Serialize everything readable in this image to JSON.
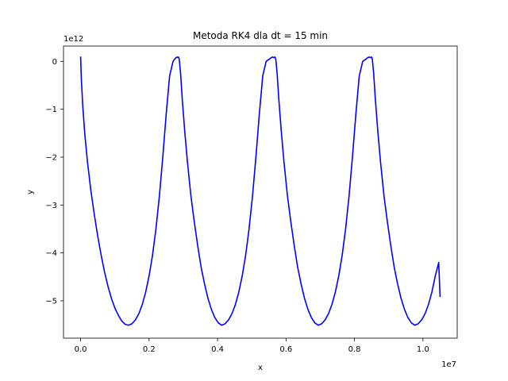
{
  "chart_data": {
    "type": "line",
    "title": "Metoda RK4 dla dt = 15 min",
    "xlabel": "x",
    "ylabel": "y",
    "x_offset_label": "1e7",
    "y_offset_label": "1e12",
    "xlim": [
      -0.05,
      1.1
    ],
    "ylim": [
      -5.78,
      0.32
    ],
    "x_ticks": [
      0.0,
      0.2,
      0.4,
      0.6,
      0.8,
      1.0
    ],
    "x_tick_labels": [
      "0.0",
      "0.2",
      "0.4",
      "0.6",
      "0.8",
      "1.0"
    ],
    "y_ticks": [
      0,
      -1,
      -2,
      -3,
      -4,
      -5
    ],
    "y_tick_labels": [
      "0",
      "−1",
      "−2",
      "−3",
      "−4",
      "−5"
    ],
    "grid": false,
    "series": [
      {
        "color": "#0000ff",
        "x": [
          0.0,
          0.002,
          0.006,
          0.012,
          0.02,
          0.03,
          0.04,
          0.05,
          0.06,
          0.07,
          0.08,
          0.09,
          0.1,
          0.11,
          0.12,
          0.13,
          0.14,
          0.15,
          0.16,
          0.17,
          0.18,
          0.19,
          0.2,
          0.21,
          0.22,
          0.23,
          0.24,
          0.25,
          0.26,
          0.27,
          0.275,
          0.279,
          0.282,
          0.284,
          0.286,
          0.288,
          0.292,
          0.297,
          0.304,
          0.312,
          0.322,
          0.332,
          0.342,
          0.352,
          0.362,
          0.372,
          0.382,
          0.392,
          0.402,
          0.412,
          0.422,
          0.432,
          0.442,
          0.452,
          0.462,
          0.472,
          0.482,
          0.492,
          0.502,
          0.512,
          0.522,
          0.532,
          0.542,
          0.552,
          0.557,
          0.561,
          0.564,
          0.566,
          0.568,
          0.57,
          0.574,
          0.579,
          0.586,
          0.594,
          0.604,
          0.614,
          0.624,
          0.634,
          0.644,
          0.654,
          0.664,
          0.674,
          0.684,
          0.694,
          0.704,
          0.714,
          0.724,
          0.734,
          0.744,
          0.754,
          0.764,
          0.774,
          0.784,
          0.794,
          0.804,
          0.814,
          0.824,
          0.834,
          0.839,
          0.843,
          0.846,
          0.848,
          0.85,
          0.852,
          0.856,
          0.861,
          0.868,
          0.876,
          0.886,
          0.896,
          0.906,
          0.916,
          0.926,
          0.936,
          0.946,
          0.956,
          0.966,
          0.976,
          0.986,
          0.996,
          1.006,
          1.016,
          1.026,
          1.036,
          1.046,
          1.05
        ],
        "y": [
          0.1,
          -0.35,
          -0.9,
          -1.5,
          -2.1,
          -2.7,
          -3.2,
          -3.65,
          -4.05,
          -4.4,
          -4.7,
          -4.95,
          -5.15,
          -5.3,
          -5.42,
          -5.49,
          -5.51,
          -5.48,
          -5.4,
          -5.27,
          -5.08,
          -4.82,
          -4.48,
          -4.05,
          -3.5,
          -2.82,
          -2.0,
          -1.1,
          -0.3,
          0.0,
          0.05,
          0.08,
          0.09,
          0.08,
          0.09,
          0.05,
          -0.25,
          -0.8,
          -1.45,
          -2.1,
          -2.8,
          -3.35,
          -3.85,
          -4.3,
          -4.65,
          -4.95,
          -5.18,
          -5.35,
          -5.46,
          -5.51,
          -5.48,
          -5.4,
          -5.27,
          -5.08,
          -4.82,
          -4.48,
          -4.05,
          -3.5,
          -2.82,
          -2.0,
          -1.1,
          -0.3,
          0.0,
          0.05,
          0.08,
          0.09,
          0.08,
          0.08,
          0.09,
          0.05,
          -0.25,
          -0.8,
          -1.45,
          -2.1,
          -2.8,
          -3.35,
          -3.85,
          -4.3,
          -4.65,
          -4.95,
          -5.18,
          -5.35,
          -5.46,
          -5.51,
          -5.48,
          -5.4,
          -5.27,
          -5.08,
          -4.82,
          -4.48,
          -4.05,
          -3.5,
          -2.82,
          -2.0,
          -1.1,
          -0.3,
          0.0,
          0.05,
          0.08,
          0.09,
          0.08,
          0.08,
          0.09,
          0.05,
          -0.25,
          -0.8,
          -1.45,
          -2.1,
          -2.8,
          -3.35,
          -3.85,
          -4.3,
          -4.65,
          -4.95,
          -5.18,
          -5.35,
          -5.46,
          -5.51,
          -5.48,
          -5.4,
          -5.27,
          -5.08,
          -4.82,
          -4.48,
          -4.2,
          -4.92
        ]
      }
    ]
  }
}
